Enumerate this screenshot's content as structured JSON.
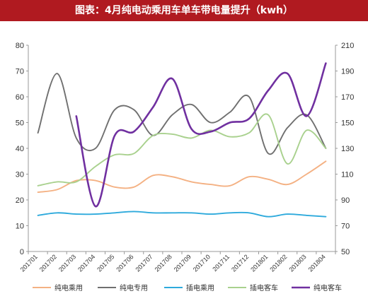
{
  "chart_data": {
    "type": "line",
    "title": "图表：4月纯电动乘用车单车带电量提升（kwh）",
    "categories": [
      "201701",
      "201702",
      "201703",
      "201704",
      "201705",
      "201706",
      "201707",
      "201708",
      "201709",
      "201710",
      "201711",
      "201712",
      "201801",
      "201802",
      "201803",
      "201804"
    ],
    "y_left": {
      "ticks": [
        0,
        10,
        20,
        30,
        40,
        50,
        60,
        70,
        80
      ],
      "range": [
        0,
        80
      ]
    },
    "y_right": {
      "ticks": [
        50,
        70,
        90,
        110,
        130,
        150,
        170,
        190,
        210
      ],
      "range": [
        50,
        210
      ]
    },
    "series": [
      {
        "name": "纯电乘用",
        "axis": "left",
        "color": "#f4b183",
        "values": [
          23,
          24,
          27.5,
          27.5,
          25,
          25,
          29.5,
          29,
          27,
          26,
          25.5,
          29,
          28,
          26,
          30,
          35
        ]
      },
      {
        "name": "纯电专用",
        "axis": "left",
        "color": "#707070",
        "values": [
          46,
          69,
          44,
          40,
          55,
          55,
          45,
          53,
          57,
          50,
          54,
          60,
          38,
          48,
          53,
          40
        ]
      },
      {
        "name": "插电乘用",
        "axis": "left",
        "color": "#2eaadc",
        "values": [
          14,
          15,
          14.5,
          14.5,
          15,
          15.5,
          15,
          15,
          15,
          14.5,
          15,
          15,
          13.5,
          14.5,
          14,
          13.5
        ]
      },
      {
        "name": "插电客车",
        "axis": "left",
        "color": "#a9d18e",
        "values": [
          25.5,
          27,
          27,
          33,
          37.5,
          38,
          45,
          45.5,
          44,
          47,
          44.5,
          46,
          53,
          34,
          47,
          40
        ]
      },
      {
        "name": "纯电客车",
        "axis": "right",
        "color": "#7030a0",
        "values": [
          null,
          null,
          155,
          85,
          140,
          143,
          162,
          184,
          145,
          143,
          150,
          153,
          175,
          188,
          155,
          196
        ]
      }
    ]
  }
}
